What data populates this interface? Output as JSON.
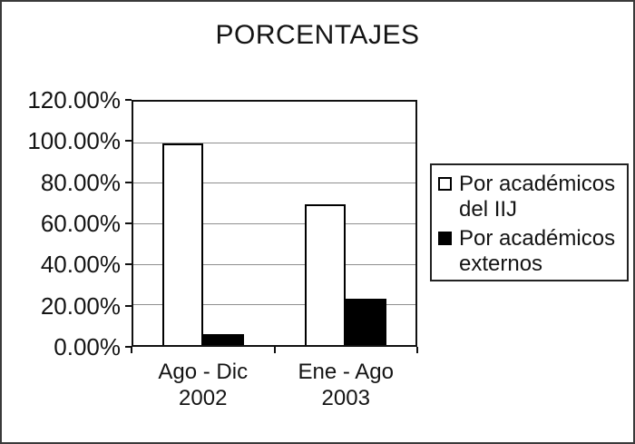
{
  "title": "PORCENTAJES",
  "window": {
    "background": "#ffffff",
    "border_color": "#3a3a3a"
  },
  "chart_data": {
    "type": "bar",
    "title": "PORCENTAJES",
    "categories": [
      "Ago - Dic 2002",
      "Ene - Ago 2003"
    ],
    "categories_lines": [
      [
        "Ago - Dic",
        "2002"
      ],
      [
        "Ene - Ago",
        "2003"
      ]
    ],
    "series": [
      {
        "name": "Por académicos del IIJ",
        "fill": "#ffffff",
        "values": [
          99.5,
          69.5
        ]
      },
      {
        "name": "Por académicos externos",
        "fill": "#000000",
        "values": [
          5.5,
          23.0
        ]
      }
    ],
    "ylim": [
      0,
      120
    ],
    "yticks": [
      {
        "value": 0,
        "label": "0.00%"
      },
      {
        "value": 20,
        "label": "20.00%"
      },
      {
        "value": 40,
        "label": "40.00%"
      },
      {
        "value": 60,
        "label": "60.00%"
      },
      {
        "value": 80,
        "label": "80.00%"
      },
      {
        "value": 100,
        "label": "100.00%"
      },
      {
        "value": 120,
        "label": "120.00%"
      }
    ],
    "grid": true,
    "gridline_color": "#8f8f8f",
    "legend_position": "right",
    "legend": [
      "Por académicos del IIJ",
      "Por académicos externos"
    ]
  }
}
